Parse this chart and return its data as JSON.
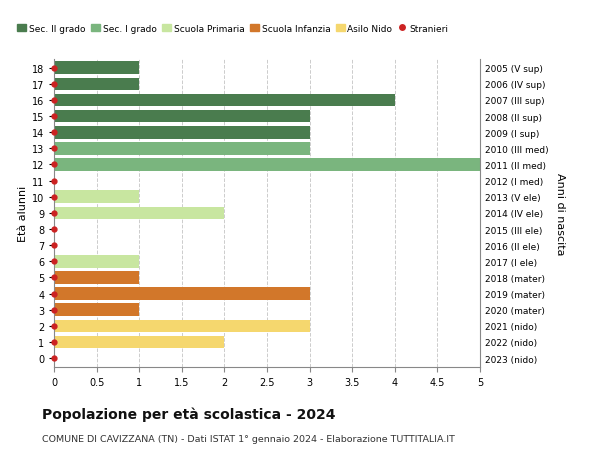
{
  "ages": [
    18,
    17,
    16,
    15,
    14,
    13,
    12,
    11,
    10,
    9,
    8,
    7,
    6,
    5,
    4,
    3,
    2,
    1,
    0
  ],
  "right_labels": [
    "2005 (V sup)",
    "2006 (IV sup)",
    "2007 (III sup)",
    "2008 (II sup)",
    "2009 (I sup)",
    "2010 (III med)",
    "2011 (II med)",
    "2012 (I med)",
    "2013 (V ele)",
    "2014 (IV ele)",
    "2015 (III ele)",
    "2016 (II ele)",
    "2017 (I ele)",
    "2018 (mater)",
    "2019 (mater)",
    "2020 (mater)",
    "2021 (nido)",
    "2022 (nido)",
    "2023 (nido)"
  ],
  "bars": [
    {
      "age": 18,
      "value": 1,
      "color": "#4a7c4e"
    },
    {
      "age": 17,
      "value": 1,
      "color": "#4a7c4e"
    },
    {
      "age": 16,
      "value": 4,
      "color": "#4a7c4e"
    },
    {
      "age": 15,
      "value": 3,
      "color": "#4a7c4e"
    },
    {
      "age": 14,
      "value": 3,
      "color": "#4a7c4e"
    },
    {
      "age": 13,
      "value": 3,
      "color": "#7ab57e"
    },
    {
      "age": 12,
      "value": 5,
      "color": "#7ab57e"
    },
    {
      "age": 11,
      "value": 0,
      "color": "#7ab57e"
    },
    {
      "age": 10,
      "value": 1,
      "color": "#c8e6a0"
    },
    {
      "age": 9,
      "value": 2,
      "color": "#c8e6a0"
    },
    {
      "age": 8,
      "value": 0,
      "color": "#c8e6a0"
    },
    {
      "age": 7,
      "value": 0,
      "color": "#c8e6a0"
    },
    {
      "age": 6,
      "value": 1,
      "color": "#c8e6a0"
    },
    {
      "age": 5,
      "value": 1,
      "color": "#d2772a"
    },
    {
      "age": 4,
      "value": 3,
      "color": "#d2772a"
    },
    {
      "age": 3,
      "value": 1,
      "color": "#d2772a"
    },
    {
      "age": 2,
      "value": 3,
      "color": "#f5d76e"
    },
    {
      "age": 1,
      "value": 2,
      "color": "#f5d76e"
    },
    {
      "age": 0,
      "value": 0,
      "color": "#f5d76e"
    }
  ],
  "stranieri_ages": [
    18,
    17,
    16,
    15,
    14,
    13,
    12,
    11,
    10,
    9,
    8,
    7,
    6,
    5,
    4,
    3,
    2,
    1,
    0
  ],
  "xlim": [
    0,
    5.0
  ],
  "xticks": [
    0,
    0.5,
    1.0,
    1.5,
    2.0,
    2.5,
    3.0,
    3.5,
    4.0,
    4.5,
    5.0
  ],
  "ylabel": "Età alunni",
  "right_ylabel": "Anni di nascita",
  "title": "Popolazione per età scolastica - 2024",
  "subtitle": "COMUNE DI CAVIZZANA (TN) - Dati ISTAT 1° gennaio 2024 - Elaborazione TUTTITALIA.IT",
  "legend_items": [
    {
      "label": "Sec. II grado",
      "color": "#4a7c4e",
      "type": "patch"
    },
    {
      "label": "Sec. I grado",
      "color": "#7ab57e",
      "type": "patch"
    },
    {
      "label": "Scuola Primaria",
      "color": "#c8e6a0",
      "type": "patch"
    },
    {
      "label": "Scuola Infanzia",
      "color": "#d2772a",
      "type": "patch"
    },
    {
      "label": "Asilo Nido",
      "color": "#f5d76e",
      "type": "patch"
    },
    {
      "label": "Stranieri",
      "color": "#cc2222",
      "type": "circle"
    }
  ],
  "bg_color": "#ffffff",
  "grid_color": "#cccccc",
  "bar_height": 0.78,
  "stranieri_dot_color": "#cc2222"
}
